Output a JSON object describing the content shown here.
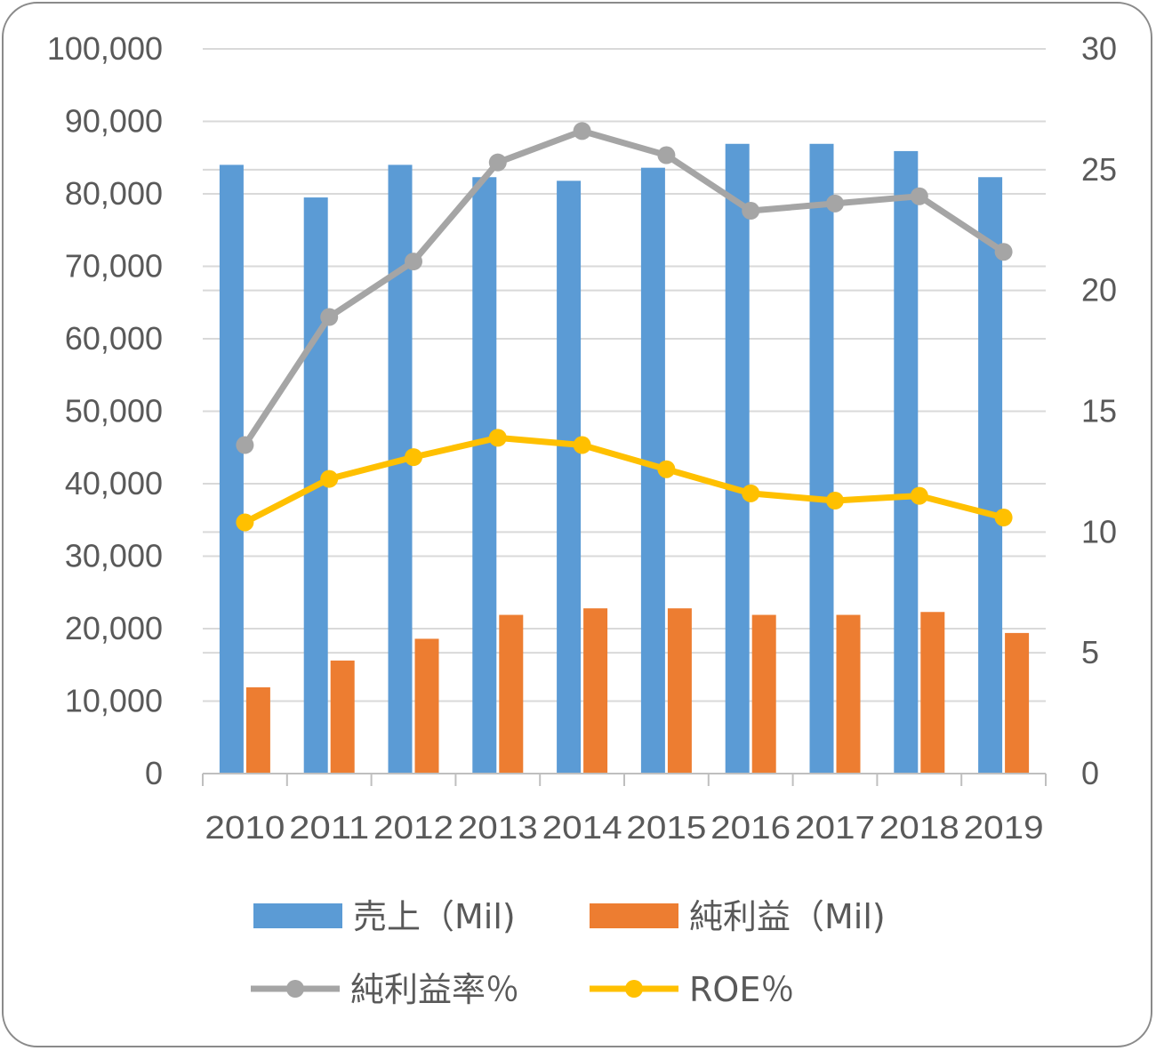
{
  "chart_data": {
    "type": "bar",
    "categories": [
      "2010",
      "2011",
      "2012",
      "2013",
      "2014",
      "2015",
      "2016",
      "2017",
      "2018",
      "2019"
    ],
    "y_left": {
      "min": 0,
      "max": 100000,
      "step": 10000,
      "tick_labels": [
        "0",
        "10,000",
        "20,000",
        "30,000",
        "40,000",
        "50,000",
        "60,000",
        "70,000",
        "80,000",
        "90,000",
        "100,000"
      ]
    },
    "y_right": {
      "min": 0,
      "max": 30,
      "step": 5,
      "tick_labels": [
        "0",
        "5",
        "10",
        "15",
        "20",
        "25",
        "30"
      ]
    },
    "grid": true,
    "legend_position": "bottom",
    "series": [
      {
        "name": "売上（Mil)",
        "type": "bar",
        "axis": "left",
        "color": "#5B9BD5",
        "values": [
          84000,
          79500,
          84000,
          82300,
          81800,
          83600,
          86900,
          86900,
          85900,
          82300
        ]
      },
      {
        "name": "純利益（Mil)",
        "type": "bar",
        "axis": "left",
        "color": "#ED7D31",
        "values": [
          11900,
          15600,
          18600,
          21900,
          22800,
          22800,
          21900,
          21900,
          22300,
          19400
        ]
      },
      {
        "name": "純利益率％",
        "type": "line",
        "axis": "right",
        "color": "#A5A5A5",
        "values": [
          13.6,
          18.9,
          21.2,
          25.3,
          26.6,
          25.6,
          23.3,
          23.6,
          23.9,
          21.6
        ]
      },
      {
        "name": "ROE％",
        "type": "line",
        "axis": "right",
        "color": "#FFC000",
        "values": [
          10.4,
          12.2,
          13.1,
          13.9,
          13.6,
          12.6,
          11.6,
          11.3,
          11.5,
          10.6
        ]
      }
    ]
  }
}
